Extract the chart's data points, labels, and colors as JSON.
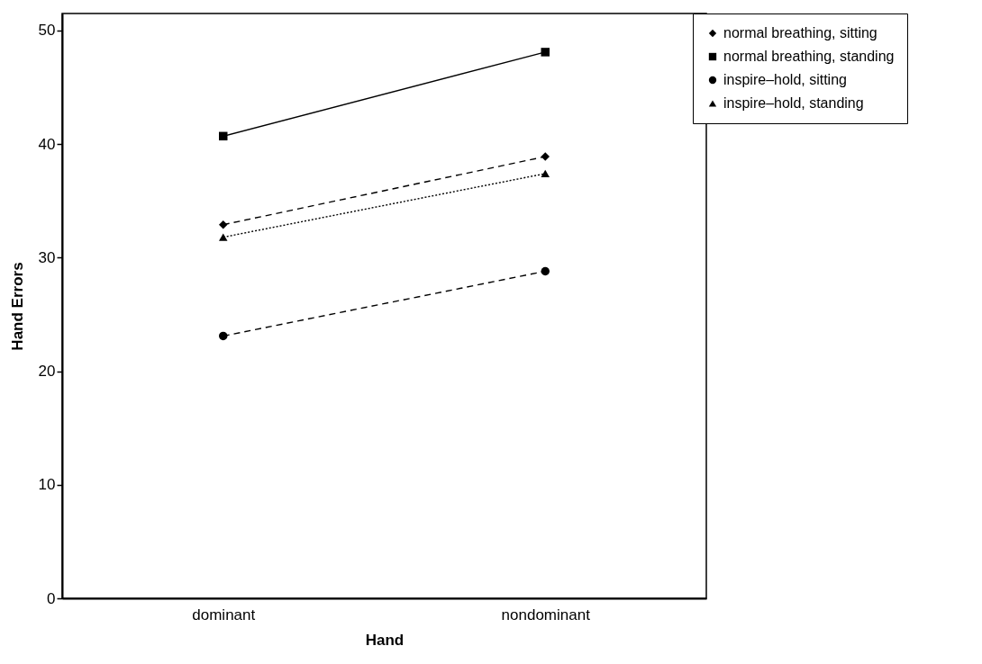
{
  "chart_data": {
    "type": "line",
    "xlabel": "Hand",
    "ylabel": "Hand Errors",
    "categories": [
      "dominant",
      "nondominant"
    ],
    "series": [
      {
        "name": "normal breathing, sitting",
        "color": "#000000",
        "values": [
          32.9,
          38.9
        ],
        "marker": "diamond",
        "line_style": "dashed"
      },
      {
        "name": "normal breathing, standing",
        "color": "#000000",
        "values": [
          40.7,
          48.1
        ],
        "marker": "square",
        "line_style": "solid"
      },
      {
        "name": "inspire–hold, sitting",
        "color": "#000000",
        "values": [
          23.1,
          28.8
        ],
        "marker": "circle",
        "line_style": "dashed"
      },
      {
        "name": "inspire–hold, standing",
        "color": "#000000",
        "values": [
          31.8,
          37.4
        ],
        "marker": "triangle",
        "line_style": "dotted"
      }
    ],
    "ylim": [
      0,
      51.5
    ],
    "yticks": [
      0,
      10,
      20,
      30,
      40,
      50
    ],
    "grid": false,
    "legend": "top right"
  }
}
